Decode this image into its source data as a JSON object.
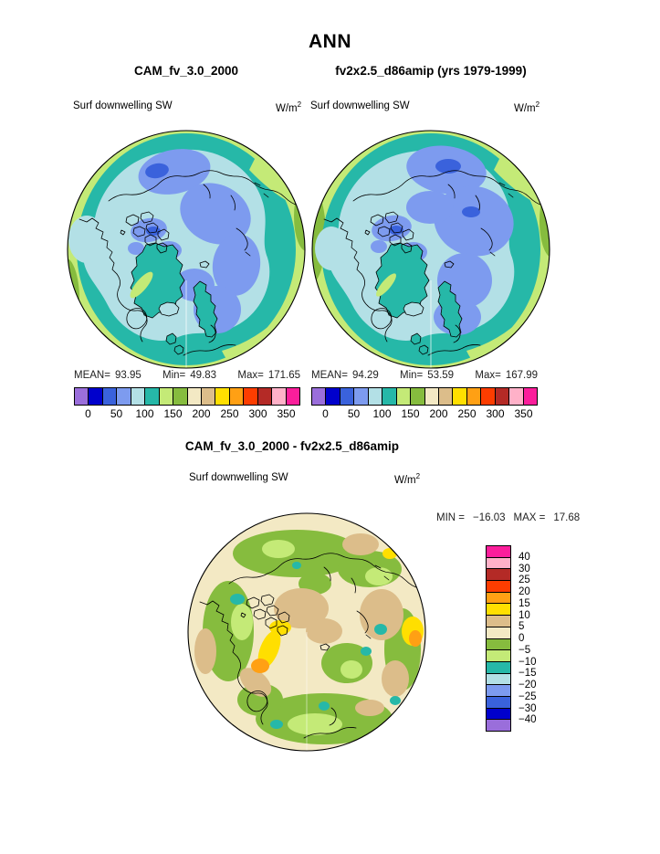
{
  "title": "ANN",
  "palette": {
    "purple": "#9A6EDB",
    "dblue": "#0000CC",
    "rblue": "#3A62DC",
    "cblue": "#7D9BEF",
    "pcyan": "#B3E0E6",
    "teal": "#26B8A8",
    "lgreen": "#C4EA77",
    "olive": "#86BC3E",
    "cream": "#F3E9C4",
    "tan": "#DCBD8A",
    "yellow": "#FFDF00",
    "orange": "#FFA014",
    "rorange": "#FD3D00",
    "dred": "#B42A26",
    "pink": "#FFB1C8",
    "magenta": "#FB1E9B"
  },
  "panels": {
    "left": {
      "subtitle": "CAM_fv_3.0_2000",
      "field": "Surf downwelling SW",
      "units_base": "W/m",
      "units_exp": "2",
      "stats": {
        "mean_label": "MEAN=",
        "mean": "93.95",
        "min_label": "Min=",
        "min": "49.83",
        "max_label": "Max=",
        "max": "171.65"
      }
    },
    "right": {
      "subtitle": "fv2x2.5_d86amip (yrs 1979-1999)",
      "field": "Surf downwelling SW",
      "units_base": "W/m",
      "units_exp": "2",
      "stats": {
        "mean_label": "MEAN=",
        "mean": "94.29",
        "min_label": "Min=",
        "min": "53.59",
        "max_label": "Max=",
        "max": "167.99"
      }
    }
  },
  "colorbar": {
    "color_order": [
      "purple",
      "dblue",
      "rblue",
      "cblue",
      "pcyan",
      "teal",
      "lgreen",
      "olive",
      "cream",
      "tan",
      "yellow",
      "orange",
      "rorange",
      "dred",
      "pink",
      "magenta"
    ],
    "tick_labels": [
      "0",
      "50",
      "100",
      "150",
      "200",
      "250",
      "300",
      "350"
    ]
  },
  "diff": {
    "title": "CAM_fv_3.0_2000 - fv2x2.5_d86amip",
    "field": "Surf downwelling SW",
    "units_base": "W/m",
    "units_exp": "2",
    "min_label": "MIN =",
    "min": "−16.03",
    "max_label": "MAX =",
    "max": "17.68",
    "colorbar_color_order": [
      "magenta",
      "pink",
      "dred",
      "rorange",
      "orange",
      "yellow",
      "tan",
      "cream",
      "olive",
      "lgreen",
      "teal",
      "pcyan",
      "cblue",
      "rblue",
      "dblue",
      "purple"
    ],
    "colorbar_labels": [
      "40",
      "30",
      "25",
      "20",
      "15",
      "10",
      "5",
      "0",
      "−5",
      "−10",
      "−15",
      "−20",
      "−25",
      "−30",
      "−40"
    ]
  },
  "chart_data": {
    "type": "heatmap",
    "subtype": "polar_stereographic_filled_contour_maps",
    "title": "ANN",
    "variable": "Surf downwelling SW",
    "units": "W/m2",
    "projection": "Northern Hemisphere polar stereographic",
    "legend_position": "horizontal bar below each top panel; vertical bar right of difference panel",
    "contour_levels": [
      0,
      25,
      50,
      75,
      100,
      125,
      150,
      175,
      200,
      225,
      250,
      275,
      300,
      325,
      350
    ],
    "colors": [
      "#9A6EDB",
      "#0000CC",
      "#3A62DC",
      "#7D9BEF",
      "#B3E0E6",
      "#26B8A8",
      "#C4EA77",
      "#86BC3E",
      "#F3E9C4",
      "#DCBD8A",
      "#FFDF00",
      "#FFA014",
      "#FD3D00",
      "#B42A26",
      "#FFB1C8",
      "#FB1E9B"
    ],
    "panels": [
      {
        "name": "CAM_fv_3.0_2000",
        "mean": 93.95,
        "min": 49.83,
        "max": 171.65
      },
      {
        "name": "fv2x2.5_d86amip (yrs 1979-1999)",
        "mean": 94.29,
        "min": 53.59,
        "max": 167.99
      },
      {
        "name": "CAM_fv_3.0_2000 - fv2x2.5_d86amip",
        "min": -16.03,
        "max": 17.68,
        "contour_levels": [
          -40,
          -30,
          -25,
          -20,
          -15,
          -10,
          -5,
          0,
          5,
          10,
          15,
          20,
          25,
          30,
          40
        ]
      }
    ]
  }
}
